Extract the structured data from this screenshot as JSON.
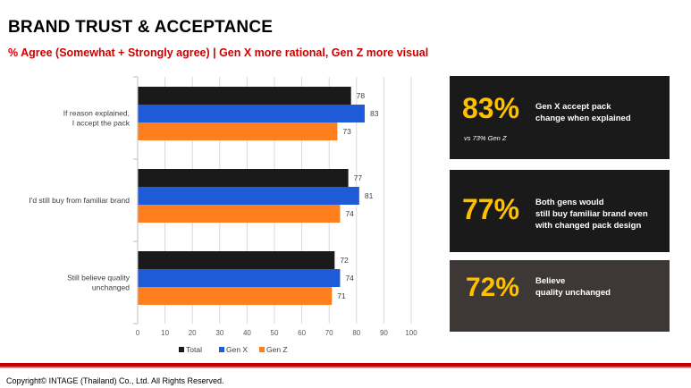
{
  "header": {
    "title": "BRAND TRUST & ACCEPTANCE",
    "subtitle": "% Agree (Somewhat + Strongly agree) | Gen X more rational, Gen Z more visual"
  },
  "chart_data": {
    "type": "bar",
    "orientation": "horizontal",
    "categories": [
      [
        "If reason explained,",
        "I accept the pack"
      ],
      [
        "I'd still buy from familiar brand"
      ],
      [
        "Still believe quality",
        "unchanged"
      ]
    ],
    "series": [
      {
        "name": "Total",
        "color": "#1a1a1a",
        "values": [
          78,
          77,
          72
        ]
      },
      {
        "name": "Gen X",
        "color": "#1f5bd8",
        "values": [
          83,
          81,
          74
        ]
      },
      {
        "name": "Gen Z",
        "color": "#ff7f1e",
        "values": [
          73,
          74,
          71
        ]
      }
    ],
    "xlim": [
      0,
      100
    ],
    "xticks": [
      0,
      10,
      20,
      30,
      40,
      50,
      60,
      70,
      80,
      90,
      100
    ],
    "grid": true,
    "legend": "bottom"
  },
  "cards": [
    {
      "big": "83%",
      "text": "Gen X accept pack\nchange when explained",
      "note": "vs 73% Gen Z",
      "bg": "#1a1a1a"
    },
    {
      "big": "77%",
      "text": "Both gens would\nstill buy familiar brand even\nwith changed pack design",
      "note": "",
      "bg": "#1a1a1a"
    },
    {
      "big": "72%",
      "text": "Believe\nquality unchanged",
      "note": "",
      "bg": "#3d3836"
    }
  ],
  "footer": {
    "copyright": "Copyright© INTAGE (Thailand) Co., Ltd. All Rights Reserved."
  }
}
